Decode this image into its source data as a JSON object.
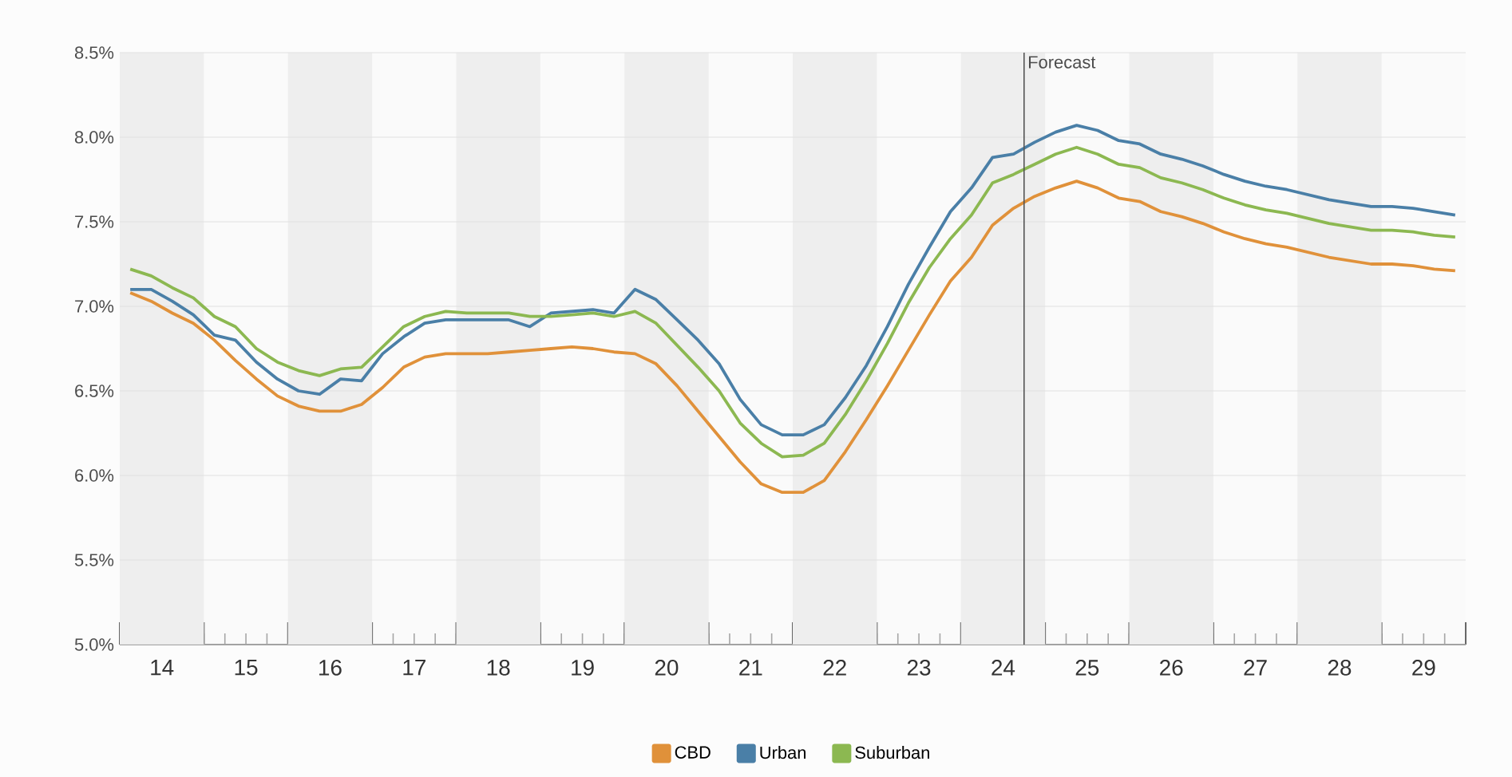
{
  "chart_data": {
    "type": "line",
    "x": [
      13.625,
      13.875,
      14.125,
      14.375,
      14.625,
      14.875,
      15.125,
      15.375,
      15.625,
      15.875,
      16.125,
      16.375,
      16.625,
      16.875,
      17.125,
      17.375,
      17.625,
      17.875,
      18.125,
      18.375,
      18.625,
      18.875,
      19.125,
      19.375,
      19.625,
      19.875,
      20.125,
      20.375,
      20.625,
      20.875,
      21.125,
      21.375,
      21.625,
      21.875,
      22.125,
      22.375,
      22.625,
      22.875,
      23.125,
      23.375,
      23.625,
      23.875,
      24.125,
      24.375,
      24.625,
      24.875,
      25.125,
      25.375,
      25.625,
      25.875,
      26.125,
      26.375,
      26.625,
      26.875,
      27.125,
      27.375,
      27.625,
      27.875,
      28.125,
      28.375,
      28.625,
      28.875,
      29.125,
      29.375
    ],
    "series": [
      {
        "name": "CBD",
        "color": "#e0913a",
        "values": [
          7.08,
          7.03,
          6.96,
          6.9,
          6.8,
          6.68,
          6.57,
          6.47,
          6.41,
          6.38,
          6.38,
          6.42,
          6.52,
          6.64,
          6.7,
          6.72,
          6.72,
          6.72,
          6.73,
          6.74,
          6.75,
          6.76,
          6.75,
          6.73,
          6.72,
          6.66,
          6.53,
          6.38,
          6.23,
          6.08,
          5.95,
          5.9,
          5.9,
          5.97,
          6.14,
          6.33,
          6.53,
          6.74,
          6.95,
          7.15,
          7.29,
          7.48,
          7.58,
          7.65,
          7.7,
          7.74,
          7.7,
          7.64,
          7.62,
          7.56,
          7.53,
          7.49,
          7.44,
          7.4,
          7.37,
          7.35,
          7.32,
          7.29,
          7.27,
          7.25,
          7.25,
          7.24,
          7.22,
          7.21
        ]
      },
      {
        "name": "Urban",
        "color": "#4a7fa7",
        "values": [
          7.1,
          7.1,
          7.03,
          6.95,
          6.83,
          6.8,
          6.67,
          6.57,
          6.5,
          6.48,
          6.57,
          6.56,
          6.72,
          6.82,
          6.9,
          6.92,
          6.92,
          6.92,
          6.92,
          6.88,
          6.96,
          6.97,
          6.98,
          6.96,
          7.1,
          7.04,
          6.92,
          6.8,
          6.66,
          6.45,
          6.3,
          6.24,
          6.24,
          6.3,
          6.46,
          6.65,
          6.88,
          7.13,
          7.35,
          7.56,
          7.7,
          7.88,
          7.9,
          7.97,
          8.03,
          8.07,
          8.04,
          7.98,
          7.96,
          7.9,
          7.87,
          7.83,
          7.78,
          7.74,
          7.71,
          7.69,
          7.66,
          7.63,
          7.61,
          7.59,
          7.59,
          7.58,
          7.56,
          7.54
        ]
      },
      {
        "name": "Suburban",
        "color": "#8cb851",
        "values": [
          7.22,
          7.18,
          7.11,
          7.05,
          6.94,
          6.88,
          6.75,
          6.67,
          6.62,
          6.59,
          6.63,
          6.64,
          6.76,
          6.88,
          6.94,
          6.97,
          6.96,
          6.96,
          6.96,
          6.94,
          6.94,
          6.95,
          6.96,
          6.94,
          6.97,
          6.9,
          6.77,
          6.64,
          6.5,
          6.31,
          6.19,
          6.11,
          6.12,
          6.19,
          6.36,
          6.56,
          6.78,
          7.02,
          7.23,
          7.4,
          7.54,
          7.73,
          7.78,
          7.84,
          7.9,
          7.94,
          7.9,
          7.84,
          7.82,
          7.76,
          7.73,
          7.69,
          7.64,
          7.6,
          7.57,
          7.55,
          7.52,
          7.49,
          7.47,
          7.45,
          7.45,
          7.44,
          7.42,
          7.41
        ]
      }
    ],
    "xlim": [
      13.5,
      29.5
    ],
    "ylim": [
      5,
      8.5
    ],
    "xticks": [
      {
        "value": 13.5,
        "label": null
      },
      {
        "value": 13.75,
        "label": null
      },
      14,
      {
        "value": 14.25,
        "label": null
      },
      {
        "value": 14.5,
        "label": null
      },
      {
        "value": 14.75,
        "label": null
      },
      15,
      {
        "value": 15.25,
        "label": null
      },
      {
        "value": 15.5,
        "label": null
      },
      {
        "value": 15.75,
        "label": null
      },
      16,
      {
        "value": 16.25,
        "label": null
      },
      {
        "value": 16.5,
        "label": null
      },
      {
        "value": 16.75,
        "label": null
      },
      17,
      {
        "value": 17.25,
        "label": null
      },
      {
        "value": 17.5,
        "label": null
      },
      {
        "value": 17.75,
        "label": null
      },
      18,
      {
        "value": 18.25,
        "label": null
      },
      {
        "value": 18.5,
        "label": null
      },
      {
        "value": 18.75,
        "label": null
      },
      19,
      {
        "value": 19.25,
        "label": null
      },
      {
        "value": 19.5,
        "label": null
      },
      {
        "value": 19.75,
        "label": null
      },
      20,
      {
        "value": 20.25,
        "label": null
      },
      {
        "value": 20.5,
        "label": null
      },
      {
        "value": 20.75,
        "label": null
      },
      21,
      {
        "value": 21.25,
        "label": null
      },
      {
        "value": 21.5,
        "label": null
      },
      {
        "value": 21.75,
        "label": null
      },
      22,
      {
        "value": 22.25,
        "label": null
      },
      {
        "value": 22.5,
        "label": null
      },
      {
        "value": 22.75,
        "label": null
      },
      23,
      {
        "value": 23.25,
        "label": null
      },
      {
        "value": 23.5,
        "label": null
      },
      {
        "value": 23.75,
        "label": null
      },
      24,
      {
        "value": 24.25,
        "label": null
      },
      {
        "value": 24.5,
        "label": null
      },
      {
        "value": 24.75,
        "label": null
      },
      25,
      {
        "value": 25.25,
        "label": null
      },
      {
        "value": 25.5,
        "label": null
      },
      {
        "value": 25.75,
        "label": null
      },
      26,
      {
        "value": 26.25,
        "label": null
      },
      {
        "value": 26.5,
        "label": null
      },
      {
        "value": 26.75,
        "label": null
      },
      27,
      {
        "value": 27.25,
        "label": null
      },
      {
        "value": 27.5,
        "label": null
      },
      {
        "value": 27.75,
        "label": null
      },
      28,
      {
        "value": 28.25,
        "label": null
      },
      {
        "value": 28.5,
        "label": null
      },
      {
        "value": 28.75,
        "label": null
      },
      29,
      {
        "value": 29.25,
        "label": null
      },
      {
        "value": 29.5,
        "label": null
      }
    ],
    "yticks": [
      {
        "value": 5,
        "label": "5.0%"
      },
      {
        "value": 5.5,
        "label": "5.5%"
      },
      {
        "value": 6,
        "label": "6.0%"
      },
      {
        "value": 6.5,
        "label": "6.5%"
      },
      {
        "value": 7,
        "label": "7.0%"
      },
      {
        "value": 7.5,
        "label": "7.5%"
      },
      {
        "value": 8,
        "label": "8.0%"
      },
      {
        "value": 8.5,
        "label": "8.5%"
      }
    ],
    "ref_lines": [
      {
        "axis": "x",
        "value": 24.25,
        "label": "Forecast",
        "color": "#555555"
      }
    ],
    "bands": [
      {
        "axis": "x",
        "from": 13.5,
        "to": 14.5,
        "color": "#eeeeee"
      },
      {
        "axis": "x",
        "from": 15.5,
        "to": 16.5,
        "color": "#eeeeee"
      },
      {
        "axis": "x",
        "from": 17.5,
        "to": 18.5,
        "color": "#eeeeee"
      },
      {
        "axis": "x",
        "from": 19.5,
        "to": 20.5,
        "color": "#eeeeee"
      },
      {
        "axis": "x",
        "from": 21.5,
        "to": 22.5,
        "color": "#eeeeee"
      },
      {
        "axis": "x",
        "from": 23.5,
        "to": 24.5,
        "color": "#eeeeee"
      },
      {
        "axis": "x",
        "from": 25.5,
        "to": 26.5,
        "color": "#eeeeee"
      },
      {
        "axis": "x",
        "from": 27.5,
        "to": 28.5,
        "color": "#eeeeee"
      }
    ],
    "grid": "y",
    "legend": "bottom",
    "marker": "none",
    "line_style": "solid"
  }
}
